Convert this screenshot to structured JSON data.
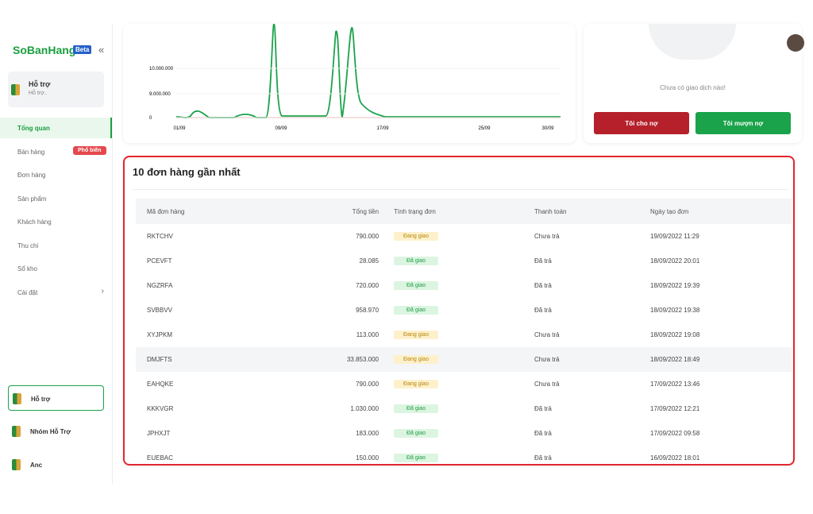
{
  "sidebar": {
    "logo": "SoBanHang",
    "beta": "Beta",
    "collapse": "«",
    "support_card": {
      "title": "Hỗ trợ",
      "subtitle": "Hỗ trợ.."
    },
    "menu": [
      {
        "label": "Tổng quan"
      },
      {
        "label": "Bán hàng",
        "badge": "Phổ biến"
      },
      {
        "label": "Đơn hàng"
      },
      {
        "label": "Sản phẩm"
      },
      {
        "label": "Khách hàng"
      },
      {
        "label": "Thu chi"
      },
      {
        "label": "Sổ kho"
      },
      {
        "label": "Cài đặt",
        "arrow": "›"
      }
    ],
    "bottom_items": [
      "Hỗ trợ",
      "Nhóm Hỗ Trợ",
      "Anc"
    ]
  },
  "chart": {
    "yticks": [
      "10.000.000",
      "9.000.000",
      "0"
    ],
    "xticks": [
      "01/09",
      "09/09",
      "17/09",
      "25/09",
      "30/09"
    ]
  },
  "debt": {
    "empty_text": "Chưa có giao dịch nào!",
    "buttons": [
      "Tôi cho nợ",
      "Tôi mượn nợ"
    ]
  },
  "orders": {
    "title": "10 đơn hàng gần nhất",
    "columns": [
      "Mã đơn hàng",
      "Tổng tiền",
      "Tình trạng đơn",
      "Thanh toán",
      "Ngày tạo đơn"
    ],
    "status_colors": {
      "Đang giao": [
        "#fdf1cc",
        "#b8860b"
      ],
      "Đã giao": [
        "#dcf5e1",
        "#1f9d45"
      ]
    },
    "rows": [
      [
        "RKTCHV",
        "790.000",
        "Đang giao",
        "Chưa trả",
        "19/09/2022 11:29"
      ],
      [
        "PCEVFT",
        "28.085",
        "Đã giao",
        "Đã trả",
        "18/09/2022 20:01"
      ],
      [
        "NGZRFA",
        "720.000",
        "Đã giao",
        "Đã trả",
        "18/09/2022 19:39"
      ],
      [
        "SVBBVV",
        "958.970",
        "Đã giao",
        "Đã trả",
        "18/09/2022 19:38"
      ],
      [
        "XYJPKM",
        "113.000",
        "Đang giao",
        "Chưa trả",
        "18/09/2022 19:08"
      ],
      [
        "DMJFTS",
        "33.853.000",
        "Đang giao",
        "Chưa trả",
        "18/09/2022 18:49"
      ],
      [
        "EAHQKE",
        "790.000",
        "Đang giao",
        "Chưa trả",
        "17/09/2022 13:46"
      ],
      [
        "KKKVGR",
        "1.030.000",
        "Đã giao",
        "Đã trả",
        "17/09/2022 12:21"
      ],
      [
        "JPHXJT",
        "183.000",
        "Đã giao",
        "Đã trả",
        "17/09/2022 09:58"
      ],
      [
        "EUEBAC",
        "150.000",
        "Đã giao",
        "Đã trả",
        "16/09/2022 18:01"
      ]
    ]
  }
}
